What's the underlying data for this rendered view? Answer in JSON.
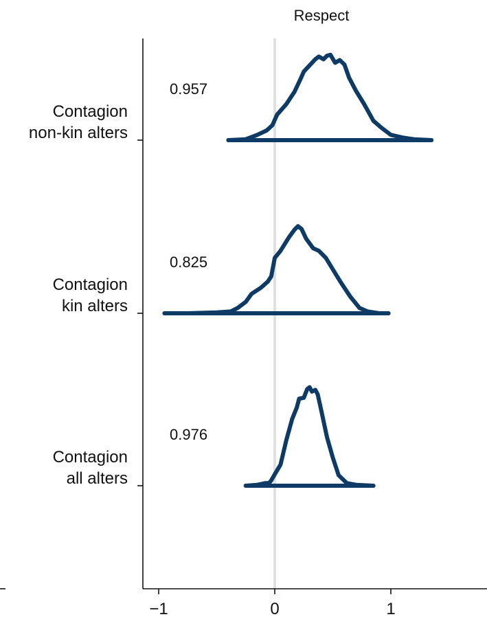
{
  "chart_data": {
    "type": "ridgeline",
    "title": "Respect",
    "xlabel": "",
    "ylabel": "",
    "xlim": [
      -1.05,
      1.8
    ],
    "xticks": [
      -1,
      0,
      1
    ],
    "xtick_labels": [
      "−1",
      "0",
      "1"
    ],
    "reference_line_x": 0,
    "grid": false,
    "legend": "none",
    "line_color": "#0e3a66",
    "reference_line_color": "#e0e0e0",
    "series": [
      {
        "label_lines": [
          "Contagion",
          "non-kin alters"
        ],
        "value_label": "0.957",
        "density": [
          [
            -0.4,
            0.0
          ],
          [
            -0.25,
            0.01
          ],
          [
            -0.15,
            0.06
          ],
          [
            -0.07,
            0.11
          ],
          [
            -0.02,
            0.17
          ],
          [
            0.02,
            0.29
          ],
          [
            0.1,
            0.41
          ],
          [
            0.17,
            0.55
          ],
          [
            0.22,
            0.69
          ],
          [
            0.25,
            0.78
          ],
          [
            0.3,
            0.85
          ],
          [
            0.35,
            0.92
          ],
          [
            0.38,
            0.95
          ],
          [
            0.42,
            0.92
          ],
          [
            0.45,
            0.96
          ],
          [
            0.48,
            0.97
          ],
          [
            0.52,
            0.88
          ],
          [
            0.56,
            0.91
          ],
          [
            0.6,
            0.86
          ],
          [
            0.64,
            0.71
          ],
          [
            0.7,
            0.56
          ],
          [
            0.77,
            0.41
          ],
          [
            0.85,
            0.22
          ],
          [
            0.92,
            0.14
          ],
          [
            1.0,
            0.06
          ],
          [
            1.1,
            0.03
          ],
          [
            1.2,
            0.01
          ],
          [
            1.35,
            0.0
          ]
        ]
      },
      {
        "label_lines": [
          "Contagion",
          "kin alters"
        ],
        "value_label": "0.825",
        "density": [
          [
            -0.95,
            0.0
          ],
          [
            -0.75,
            0.0
          ],
          [
            -0.5,
            0.01
          ],
          [
            -0.38,
            0.02
          ],
          [
            -0.32,
            0.06
          ],
          [
            -0.25,
            0.13
          ],
          [
            -0.2,
            0.22
          ],
          [
            -0.12,
            0.29
          ],
          [
            -0.06,
            0.36
          ],
          [
            -0.03,
            0.42
          ],
          [
            0.0,
            0.63
          ],
          [
            0.05,
            0.71
          ],
          [
            0.12,
            0.86
          ],
          [
            0.17,
            0.95
          ],
          [
            0.2,
            0.99
          ],
          [
            0.23,
            0.96
          ],
          [
            0.27,
            0.85
          ],
          [
            0.33,
            0.74
          ],
          [
            0.38,
            0.71
          ],
          [
            0.44,
            0.63
          ],
          [
            0.5,
            0.5
          ],
          [
            0.57,
            0.35
          ],
          [
            0.65,
            0.19
          ],
          [
            0.73,
            0.06
          ],
          [
            0.8,
            0.02
          ],
          [
            0.9,
            0.0
          ],
          [
            0.98,
            0.0
          ]
        ]
      },
      {
        "label_lines": [
          "Contagion",
          "all alters"
        ],
        "value_label": "0.976",
        "density": [
          [
            -0.25,
            0.0
          ],
          [
            -0.15,
            0.01
          ],
          [
            -0.08,
            0.03
          ],
          [
            -0.05,
            0.03
          ],
          [
            -0.03,
            0.06
          ],
          [
            0.0,
            0.13
          ],
          [
            0.05,
            0.24
          ],
          [
            0.1,
            0.52
          ],
          [
            0.15,
            0.76
          ],
          [
            0.19,
            0.89
          ],
          [
            0.21,
            0.99
          ],
          [
            0.25,
            1.0
          ],
          [
            0.28,
            1.1
          ],
          [
            0.3,
            1.12
          ],
          [
            0.32,
            1.07
          ],
          [
            0.35,
            1.09
          ],
          [
            0.37,
            1.04
          ],
          [
            0.4,
            0.86
          ],
          [
            0.45,
            0.55
          ],
          [
            0.5,
            0.32
          ],
          [
            0.55,
            0.12
          ],
          [
            0.62,
            0.03
          ],
          [
            0.7,
            0.01
          ],
          [
            0.85,
            0.0
          ]
        ]
      }
    ]
  }
}
